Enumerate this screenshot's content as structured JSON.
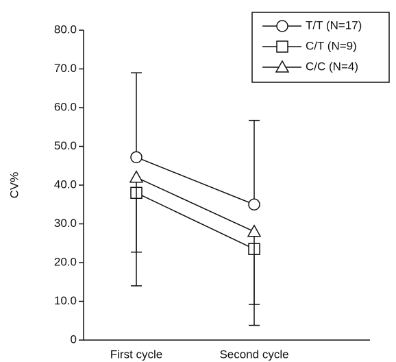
{
  "chart_data": {
    "type": "line",
    "ylabel": "CV%",
    "categories": [
      "First cycle",
      "Second cycle"
    ],
    "series": [
      {
        "name": "T/T (N=17)",
        "marker": "circle",
        "color": "#111111",
        "values": [
          47.2,
          35.0
        ],
        "errors": [
          21.8,
          21.7
        ],
        "error_direction": "up"
      },
      {
        "name": "C/T (N=9)",
        "marker": "square",
        "color": "#111111",
        "values": [
          38.0,
          23.5
        ],
        "errors": [
          15.3,
          14.3
        ],
        "error_direction": "down"
      },
      {
        "name": "C/C (N=4)",
        "marker": "triangle",
        "color": "#111111",
        "values": [
          42.0,
          28.0
        ],
        "errors": [
          28.0,
          24.2
        ],
        "error_direction": "down"
      }
    ],
    "ylim": [
      0,
      80
    ],
    "yticks": [
      0,
      {
        "value": 10,
        "label": "10.0"
      },
      {
        "value": 20,
        "label": "20.0"
      },
      {
        "value": 30,
        "label": "30.0"
      },
      {
        "value": 40,
        "label": "40.0"
      },
      {
        "value": 50,
        "label": "50.0"
      },
      {
        "value": 60,
        "label": "60.0"
      },
      {
        "value": 70,
        "label": "70.0"
      },
      {
        "value": 80,
        "label": "80.0"
      }
    ],
    "legend": "upper right"
  }
}
